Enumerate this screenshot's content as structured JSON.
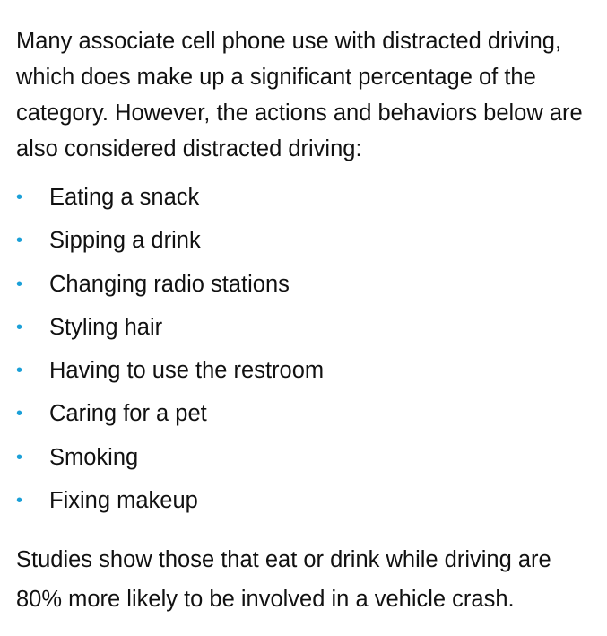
{
  "intro": "Many associate cell phone use with distracted driving, which does make up a significant percentage of the category. However, the actions and behaviors below are also considered distracted driving:",
  "items": [
    "Eating a snack",
    "Sipping a drink",
    "Changing radio stations",
    "Styling hair",
    "Having to use the restroom",
    "Caring for a pet",
    "Smoking",
    "Fixing makeup"
  ],
  "closing": "Studies show those that eat or drink while driving are 80% more likely to be involved in a vehicle crash."
}
